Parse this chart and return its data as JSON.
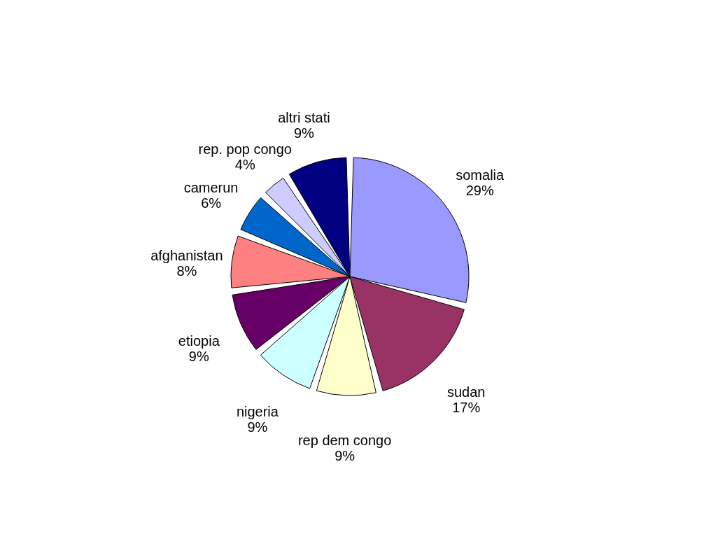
{
  "chart_data": {
    "type": "pie",
    "categories": [
      "somalia",
      "sudan",
      "rep dem congo",
      "nigeria",
      "etiopia",
      "afghanistan",
      "camerun",
      "rep. pop congo",
      "altri stati"
    ],
    "values": [
      29,
      17,
      9,
      9,
      9,
      8,
      6,
      4,
      9
    ],
    "value_labels": [
      "29%",
      "17%",
      "9%",
      "9%",
      "9%",
      "8%",
      "6%",
      "4%",
      "9%"
    ],
    "colors": [
      "#9999ff",
      "#993366",
      "#ffffcc",
      "#ccffff",
      "#660066",
      "#ff8080",
      "#0066cc",
      "#ccccff",
      "#000080"
    ],
    "legend": false
  }
}
